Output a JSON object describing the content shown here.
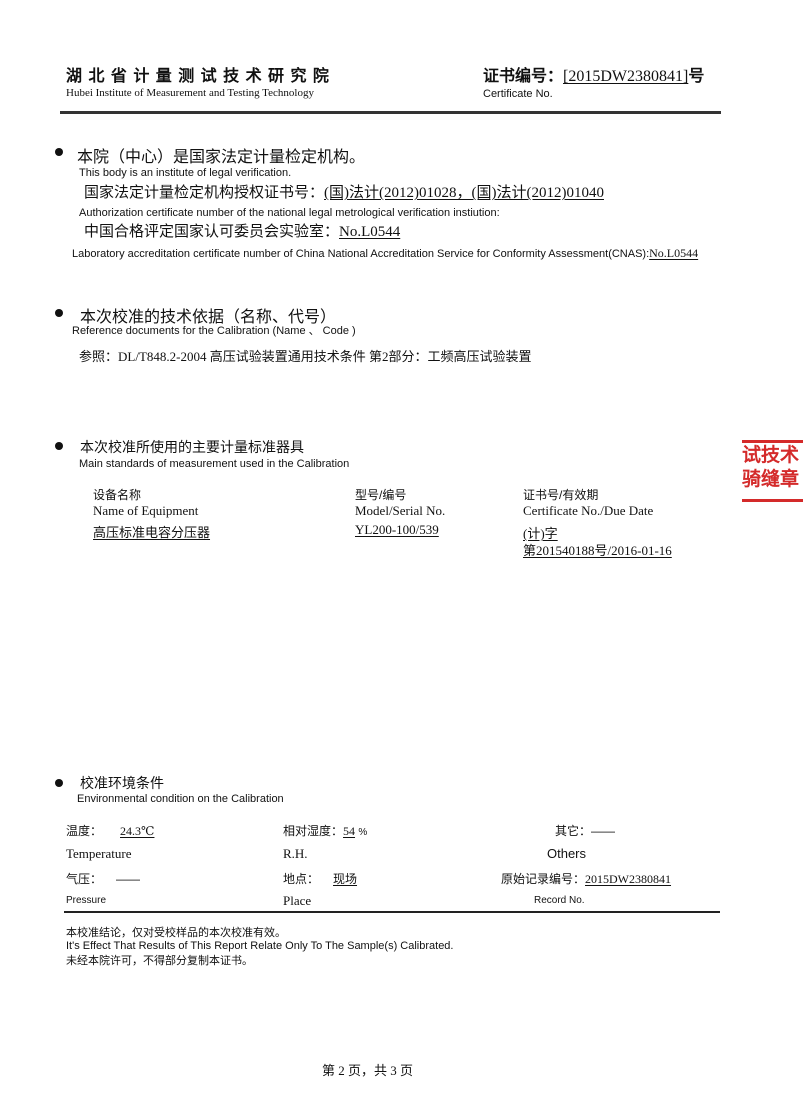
{
  "header": {
    "institute_cn": "湖 北 省 计 量 测 试 技 术 研 究 院",
    "institute_en": "Hubei Institute of Measurement and Testing Technology",
    "cert_label_cn": "证书编号：",
    "cert_no": "[2015DW2380841]",
    "cert_suffix": "号",
    "cert_label_en": "Certificate No."
  },
  "section1": {
    "title_cn": "本院（中心）是国家法定计量检定机构。",
    "title_en": "This body is an institute  of  legal  verification.",
    "auth_label_cn": "国家法定计量检定机构授权证书号：",
    "auth_value": "(国)法计(2012)01028，(国)法计(2012)01040",
    "auth_label_en": "Authorization certificate number of the national legal metrological verification instiution:",
    "cnas_label_cn": "中国合格评定国家认可委员会实验室：",
    "cnas_value": "No.L0544",
    "cnas_label_en": "Laboratory accreditation certificate number of China National Accreditation Service for Conformity Assessment(CNAS):",
    "cnas_value_en": "No.L0544"
  },
  "section2": {
    "title_cn": "本次校准的技术依据（名称、代号）",
    "title_en": "Reference documents for the Calibration (Name 、 Code )",
    "reference": "参照：DL/T848.2-2004 高压试验装置通用技术条件  第2部分：工频高压试验装置"
  },
  "section3": {
    "title_cn": "本次校准所使用的主要计量标准器具",
    "title_en": "Main standards of measurement used in the Calibration",
    "columns": [
      {
        "cn": "设备名称",
        "en": "Name of Equipment"
      },
      {
        "cn": "型号/编号",
        "en": "Model/Serial No."
      },
      {
        "cn": "证书号/有效期",
        "en": "Certificate No./Due Date"
      }
    ],
    "rows": [
      {
        "name": "高压标准电容分压器",
        "model": "YL200-100/539",
        "cert_line1": "(计)字",
        "cert_line2": "第201540188号/2016-01-16"
      }
    ]
  },
  "section4": {
    "title_cn": "校准环境条件",
    "title_en": "Environmental condition on the Calibration",
    "temperature_cn": "温度：",
    "temperature_value": "24.3℃",
    "temperature_en": "Temperature",
    "rh_cn": "相对湿度：",
    "rh_value": "54",
    "rh_unit": "%",
    "rh_en": "R.H.",
    "others_cn": "其它：",
    "others_value": "——",
    "others_en": "Others",
    "pressure_cn": "气压：",
    "pressure_value": "——",
    "pressure_en": "Pressure",
    "place_cn": "地点：",
    "place_value": "现场",
    "place_en": "Place",
    "record_cn": "原始记录编号：",
    "record_value": "2015DW2380841",
    "record_en": "Record No."
  },
  "notes": {
    "line1": "本校准结论，仅对受校样品的本次校准有效。",
    "line2": "It's Effect That Results  of This Report Relate Only To The Sample(s) Calibrated.",
    "line3": "未经本院许可，不得部分复制本证书。"
  },
  "footer": {
    "page": "第 2 页，共 3 页"
  },
  "seal": {
    "line1": "试技术",
    "line2": "骑缝章",
    "color": "#d42a2a"
  }
}
